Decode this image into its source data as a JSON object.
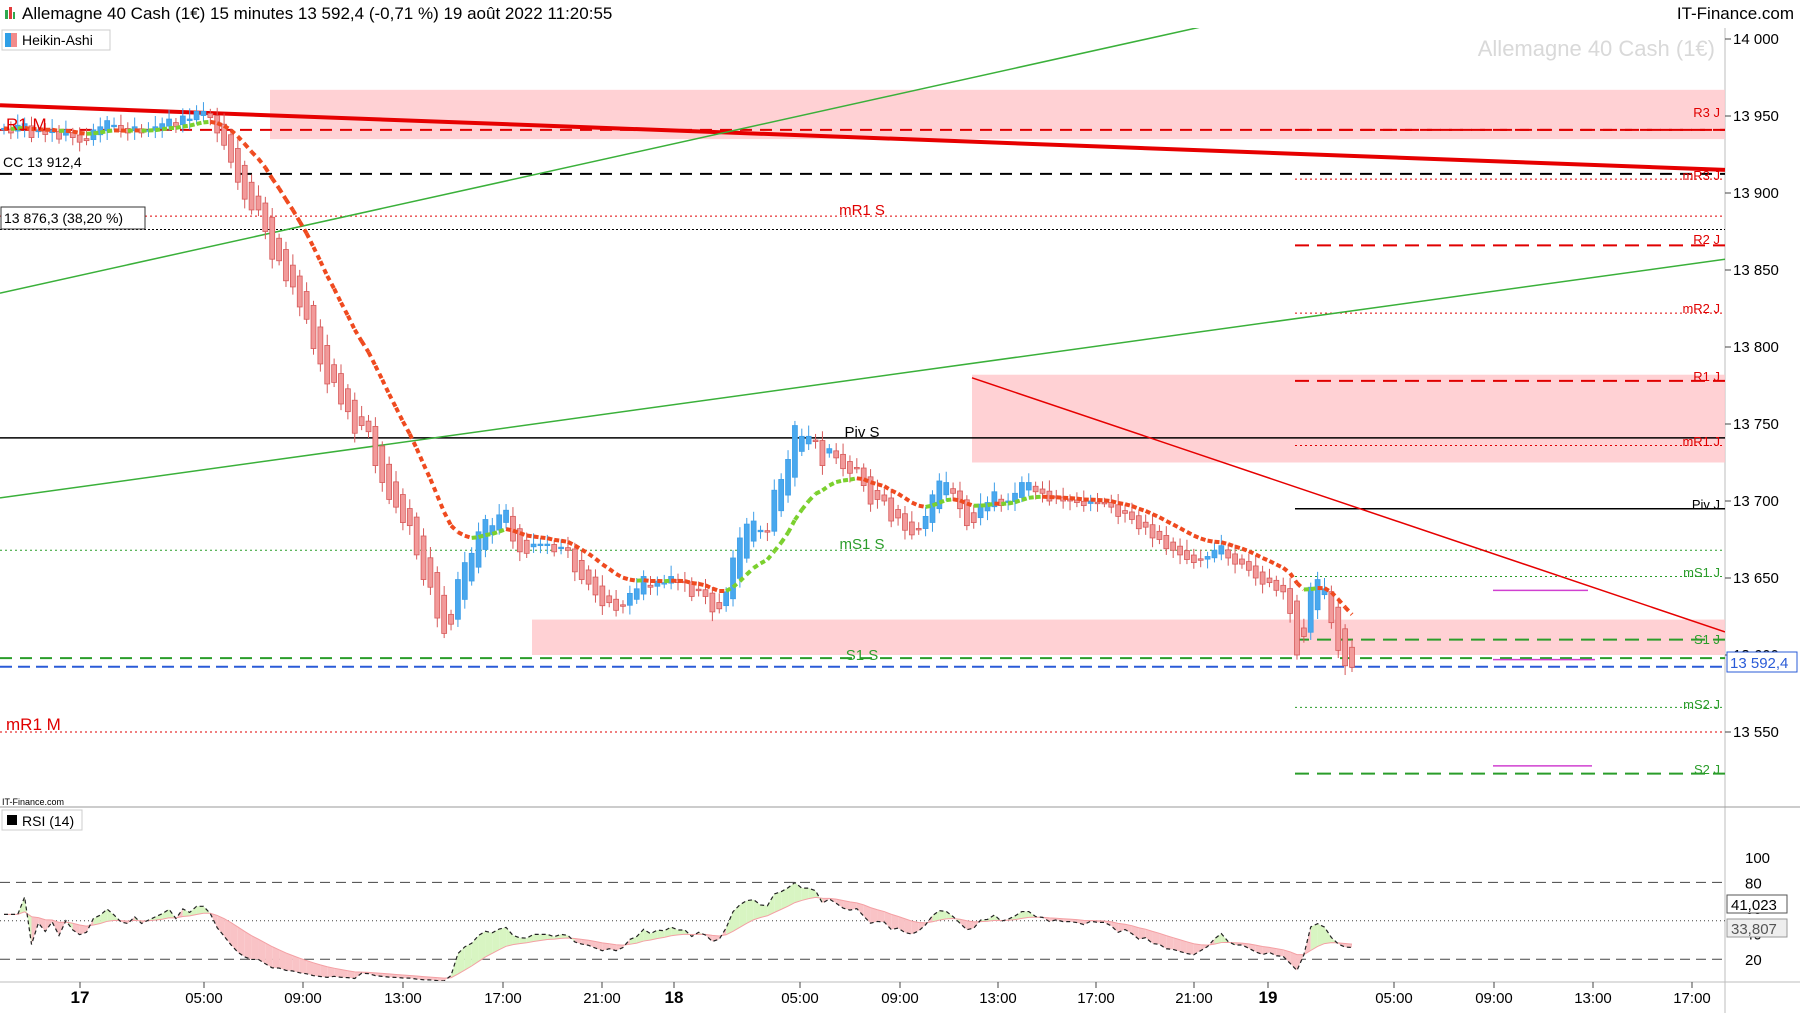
{
  "header": {
    "title": "Allemagne 40 Cash (1€) 15 minutes 13 592,4 (-0,71 %) 19 août 2022 11:20:55",
    "brand": "IT-Finance.com"
  },
  "main_panel": {
    "indicator_label": "Heikin-Ashi",
    "watermark": "Allemagne 40 Cash (1€)",
    "source_label": "IT-Finance.com",
    "price_badge": "13 592,4",
    "left_labels": {
      "r1m": "R1 M",
      "cc": "CC 13 912,4",
      "fib": "13 876,3 (38,20 %)",
      "mr1m": "mR1 M"
    },
    "mid_labels": {
      "mr1s": "mR1 S",
      "pivs": "Piv S",
      "ms1s": "mS1 S",
      "s1s": "S1 S"
    },
    "right_labels": {
      "r3j": "R3 J",
      "mr3j": "mR3 J",
      "r2j": "R2 J",
      "mr2j": "mR2 J",
      "r1j": "R1 J",
      "mr1j": "mR1 J",
      "pivj": "Piv J",
      "ms1j": "mS1 J",
      "s1j": "S1 J",
      "ms2j": "mS2 J",
      "s2j": "S2 J"
    }
  },
  "rsi_panel": {
    "label": "RSI (14)",
    "value_main": "41,023",
    "value_signal": "33,807"
  },
  "chart_data": {
    "type": "candlestick",
    "instrument": "Allemagne 40 Cash (1€)",
    "timeframe": "15 minutes",
    "last": 13592.4,
    "y_axis": {
      "range": [
        13500,
        14000
      ],
      "ticks": [
        "14 000",
        "13 950",
        "13 900",
        "13 850",
        "13 800",
        "13 750",
        "13 700",
        "13 650",
        "13 600",
        "13 550"
      ]
    },
    "x_ticks": [
      "17",
      "05:00",
      "09:00",
      "13:00",
      "17:00",
      "21:00",
      "18",
      "05:00",
      "09:00",
      "13:00",
      "17:00",
      "21:00",
      "19",
      "05:00",
      "09:00",
      "13:00",
      "17:00"
    ],
    "levels": {
      "R3 J": 13941,
      "mR3 J": 13909,
      "R2 J": 13866,
      "mR2 J": 13822,
      "R1 J": 13778,
      "mR1 J": 13736,
      "Piv J": 13695,
      "mS1 J": 13651,
      "S1 J": 13610,
      "mS2 J": 13566,
      "S2 J": 13523,
      "R1 M": 13941,
      "CC": 13912.4,
      "Fib 38,20 %": 13876.3,
      "mR1 S": 13885,
      "Piv S": 13741,
      "mS1 S": 13668,
      "S1 S": 13598,
      "mR1 M": 13550
    },
    "zones": [
      [
        13935,
        13967
      ],
      [
        13725,
        13782
      ],
      [
        13600,
        13623
      ]
    ],
    "heikin_ashi_close": [
      13942,
      13939,
      13944,
      13945,
      13936,
      13941,
      13938,
      13941,
      13935,
      13941,
      13936,
      13933,
      13934,
      13941,
      13943,
      13947,
      13944,
      13940,
      13939,
      13943,
      13939,
      13941,
      13943,
      13945,
      13948,
      13943,
      13950,
      13948,
      13953,
      13953,
      13949,
      13939,
      13931,
      13920,
      13907,
      13896,
      13889,
      13889,
      13875,
      13857,
      13856,
      13843,
      13839,
      13826,
      13818,
      13799,
      13789,
      13776,
      13777,
      13763,
      13758,
      13744,
      13749,
      13745,
      13723,
      13712,
      13701,
      13696,
      13686,
      13684,
      13665,
      13649,
      13644,
      13624,
      13614,
      13620,
      13649,
      13660,
      13666,
      13680,
      13688,
      13684,
      13691,
      13694,
      13674,
      13667,
      13666,
      13672,
      13672,
      13672,
      13667,
      13670,
      13668,
      13654,
      13649,
      13646,
      13639,
      13632,
      13634,
      13629,
      13632,
      13640,
      13643,
      13651,
      13644,
      13648,
      13647,
      13651,
      13647,
      13647,
      13638,
      13642,
      13638,
      13628,
      13630,
      13641,
      13663,
      13676,
      13685,
      13687,
      13681,
      13680,
      13707,
      13714,
      13727,
      13749,
      13742,
      13742,
      13739,
      13723,
      13734,
      13728,
      13721,
      13718,
      13721,
      13710,
      13698,
      13701,
      13700,
      13687,
      13689,
      13681,
      13678,
      13682,
      13690,
      13704,
      13713,
      13712,
      13705,
      13695,
      13684,
      13686,
      13698,
      13699,
      13706,
      13697,
      13700,
      13705,
      13712,
      13712,
      13706,
      13705,
      13700,
      13702,
      13700,
      13700,
      13699,
      13697,
      13700,
      13699,
      13699,
      13696,
      13690,
      13692,
      13688,
      13682,
      13683,
      13676,
      13675,
      13669,
      13668,
      13665,
      13662,
      13660,
      13662,
      13664,
      13668,
      13671,
      13663,
      13659,
      13659,
      13655,
      13650,
      13646,
      13647,
      13642,
      13641,
      13627,
      13600,
      13612,
      13644,
      13649,
      13643,
      13621,
      13603,
      13593,
      13592
    ],
    "rsi": {
      "period": 14,
      "levels": [
        80,
        50,
        20
      ],
      "main": 41.023,
      "signal": 33.807
    }
  }
}
